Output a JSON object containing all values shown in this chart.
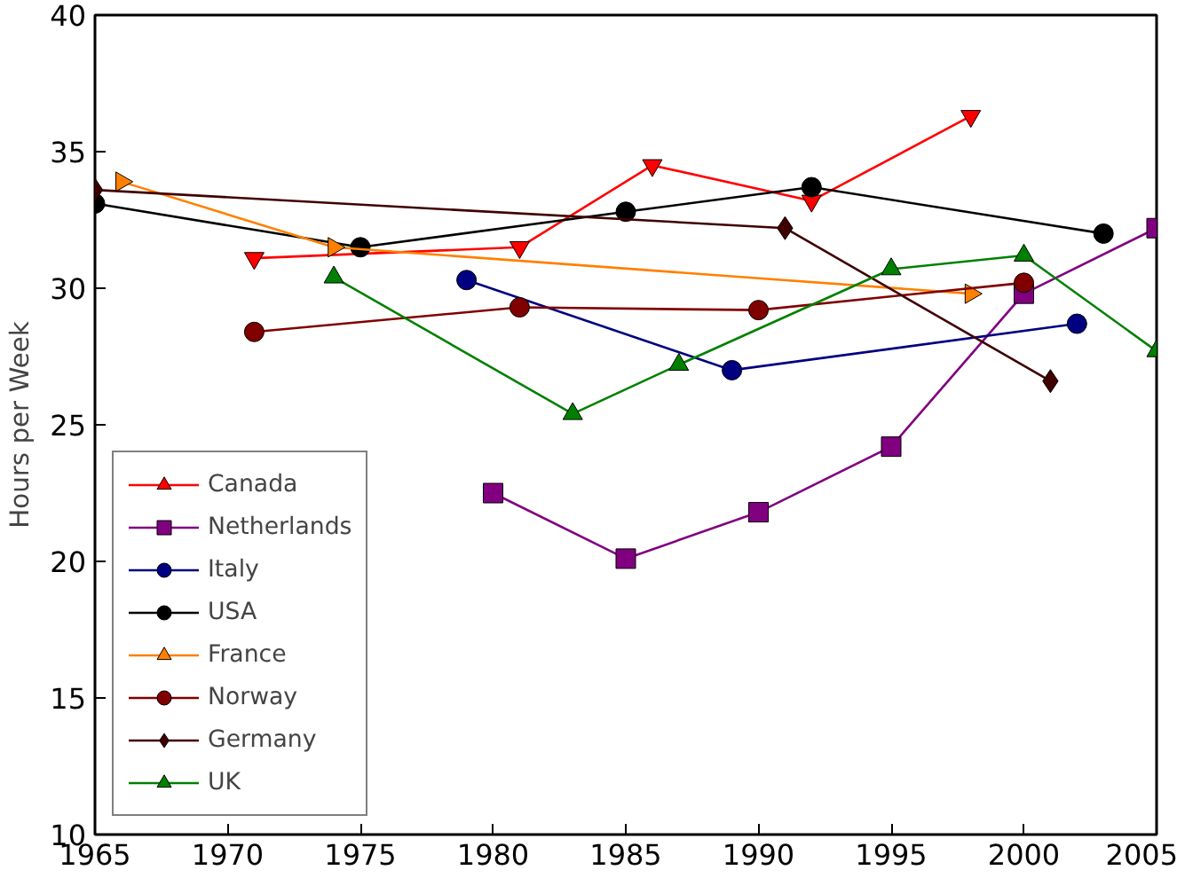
{
  "chart_data": {
    "type": "line",
    "ylabel": "Hours per Week",
    "xlim": [
      1965,
      2005
    ],
    "ylim": [
      10,
      40
    ],
    "xticks": [
      1965,
      1970,
      1975,
      1980,
      1985,
      1990,
      1995,
      2000,
      2005
    ],
    "yticks": [
      10,
      15,
      20,
      25,
      30,
      35,
      40
    ],
    "grid": false,
    "legend": "bottom left",
    "line_style": "solid",
    "series": [
      {
        "name": "Canada",
        "color": "#ff0000",
        "marker": "triangle",
        "x": [
          1971,
          1981,
          1986,
          1992,
          1998
        ],
        "values": [
          31.1,
          31.5,
          34.5,
          33.2,
          36.3
        ]
      },
      {
        "name": "Netherlands",
        "color": "#800080",
        "marker": "square",
        "x": [
          1980,
          1985,
          1990,
          1995,
          2000,
          2005
        ],
        "values": [
          22.5,
          20.1,
          21.8,
          24.2,
          29.8,
          32.2
        ]
      },
      {
        "name": "Italy",
        "color": "#000080",
        "marker": "circle",
        "x": [
          1979,
          1989,
          2002
        ],
        "values": [
          30.3,
          27.0,
          28.7
        ]
      },
      {
        "name": "USA",
        "color": "#000000",
        "marker": "circle",
        "x": [
          1965,
          1975,
          1985,
          1992,
          2003
        ],
        "values": [
          33.1,
          31.5,
          32.8,
          33.7,
          32.0
        ]
      },
      {
        "name": "France",
        "color": "#ff8000",
        "marker": "triangle",
        "x": [
          1966,
          1974,
          1998
        ],
        "values": [
          33.9,
          31.5,
          29.8
        ]
      },
      {
        "name": "Norway",
        "color": "#800000",
        "marker": "circle",
        "x": [
          1971,
          1981,
          1990,
          2000
        ],
        "values": [
          28.4,
          29.3,
          29.2,
          30.2
        ]
      },
      {
        "name": "Germany",
        "color": "#400000",
        "marker": "diamond",
        "x": [
          1965,
          1991,
          2001
        ],
        "values": [
          33.6,
          32.2,
          26.6
        ]
      },
      {
        "name": "UK",
        "color": "#008000",
        "marker": "triangle",
        "x": [
          1974,
          1983,
          1987,
          1995,
          2000,
          2005
        ],
        "values": [
          30.4,
          25.4,
          27.2,
          30.7,
          31.2,
          27.7
        ]
      }
    ]
  }
}
